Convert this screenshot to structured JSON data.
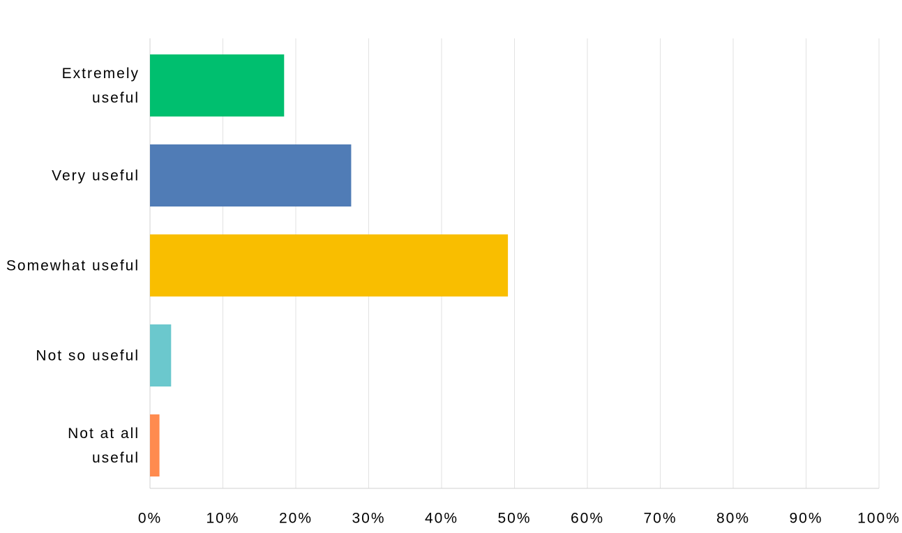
{
  "chart_data": {
    "type": "bar",
    "orientation": "horizontal",
    "categories": [
      "Extremely useful",
      "Very useful",
      "Somewhat useful",
      "Not so useful",
      "Not at all useful"
    ],
    "values": [
      18.4,
      27.6,
      49.1,
      2.9,
      1.3
    ],
    "colors": [
      "#00bf6f",
      "#507cb6",
      "#f9be00",
      "#6bc8cd",
      "#ff8b4f"
    ],
    "xlim": [
      0,
      100
    ],
    "xticks": [
      {
        "value": 0,
        "label": "0%"
      },
      {
        "value": 10,
        "label": "10%"
      },
      {
        "value": 20,
        "label": "20%"
      },
      {
        "value": 30,
        "label": "30%"
      },
      {
        "value": 40,
        "label": "40%"
      },
      {
        "value": 50,
        "label": "50%"
      },
      {
        "value": 60,
        "label": "60%"
      },
      {
        "value": 70,
        "label": "70%"
      },
      {
        "value": 80,
        "label": "80%"
      },
      {
        "value": 90,
        "label": "90%"
      },
      {
        "value": 100,
        "label": "100%"
      }
    ],
    "grid": true
  }
}
